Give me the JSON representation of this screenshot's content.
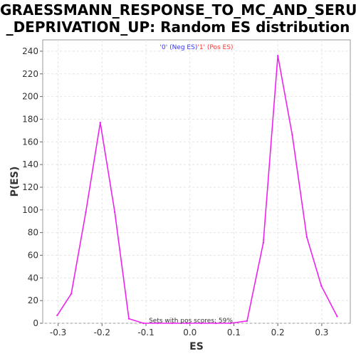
{
  "chart_data": {
    "type": "line",
    "title_line1": "GRAESSMANN_RESPONSE_TO_MC_AND_SERUM",
    "title_line2": "_DEPRIVATION_UP: Random ES distribution",
    "xlabel": "ES",
    "ylabel": "P(ES)",
    "xlim": [
      -0.335,
      0.365
    ],
    "ylim": [
      0,
      250
    ],
    "xticks": [
      -0.3,
      -0.2,
      -0.1,
      0.0,
      0.1,
      0.2,
      0.3
    ],
    "xtick_labels": [
      "-0.3",
      "-0.2",
      "-0.1",
      "0.0",
      "0.1",
      "0.2",
      "0.3"
    ],
    "yticks": [
      0,
      20,
      40,
      60,
      80,
      100,
      120,
      140,
      160,
      180,
      200,
      220,
      240
    ],
    "ytick_labels": [
      "0",
      "20",
      "40",
      "60",
      "80",
      "100",
      "120",
      "140",
      "160",
      "180",
      "200",
      "220",
      "240"
    ],
    "grid": true,
    "legend": [
      {
        "label": "'0' (Neg ES)",
        "color": "#3333ff"
      },
      {
        "label": "'1' (Pos ES)",
        "color": "#ff3333"
      }
    ],
    "legend_placement": "top-center",
    "annotation": "Sets with pos scores: 59%",
    "series": [
      {
        "color": "#ee22ee",
        "x": [
          -0.302,
          -0.27,
          -0.237,
          -0.204,
          -0.171,
          -0.139,
          -0.106,
          -0.073,
          -0.04,
          -0.007,
          0.026,
          0.059,
          0.092,
          0.13,
          0.167,
          0.2,
          0.233,
          0.266,
          0.299,
          0.335
        ],
        "y": [
          7,
          26,
          98,
          177,
          98,
          4,
          0,
          0,
          0,
          0,
          0,
          0,
          0,
          2,
          71,
          236,
          166,
          76,
          33,
          6
        ]
      }
    ]
  }
}
